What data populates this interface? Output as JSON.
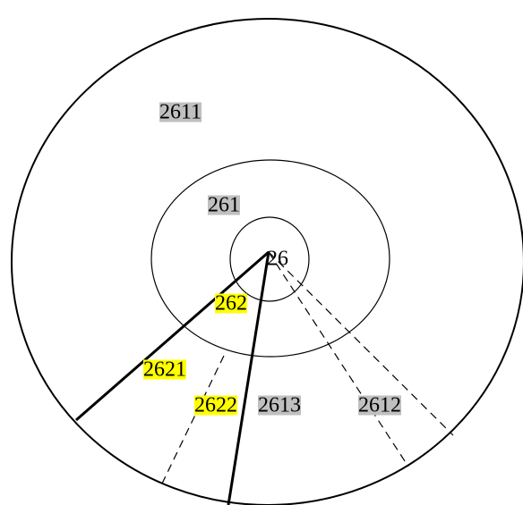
{
  "nodes": [
    {
      "label": "2611",
      "highlight": "gray"
    },
    {
      "label": "261",
      "highlight": "gray"
    },
    {
      "label": "26",
      "highlight": "none"
    },
    {
      "label": "262",
      "highlight": "yellow"
    },
    {
      "label": "2621",
      "highlight": "yellow"
    },
    {
      "label": "2622",
      "highlight": "yellow"
    },
    {
      "label": "2613",
      "highlight": "gray"
    },
    {
      "label": "2612",
      "highlight": "gray"
    }
  ]
}
